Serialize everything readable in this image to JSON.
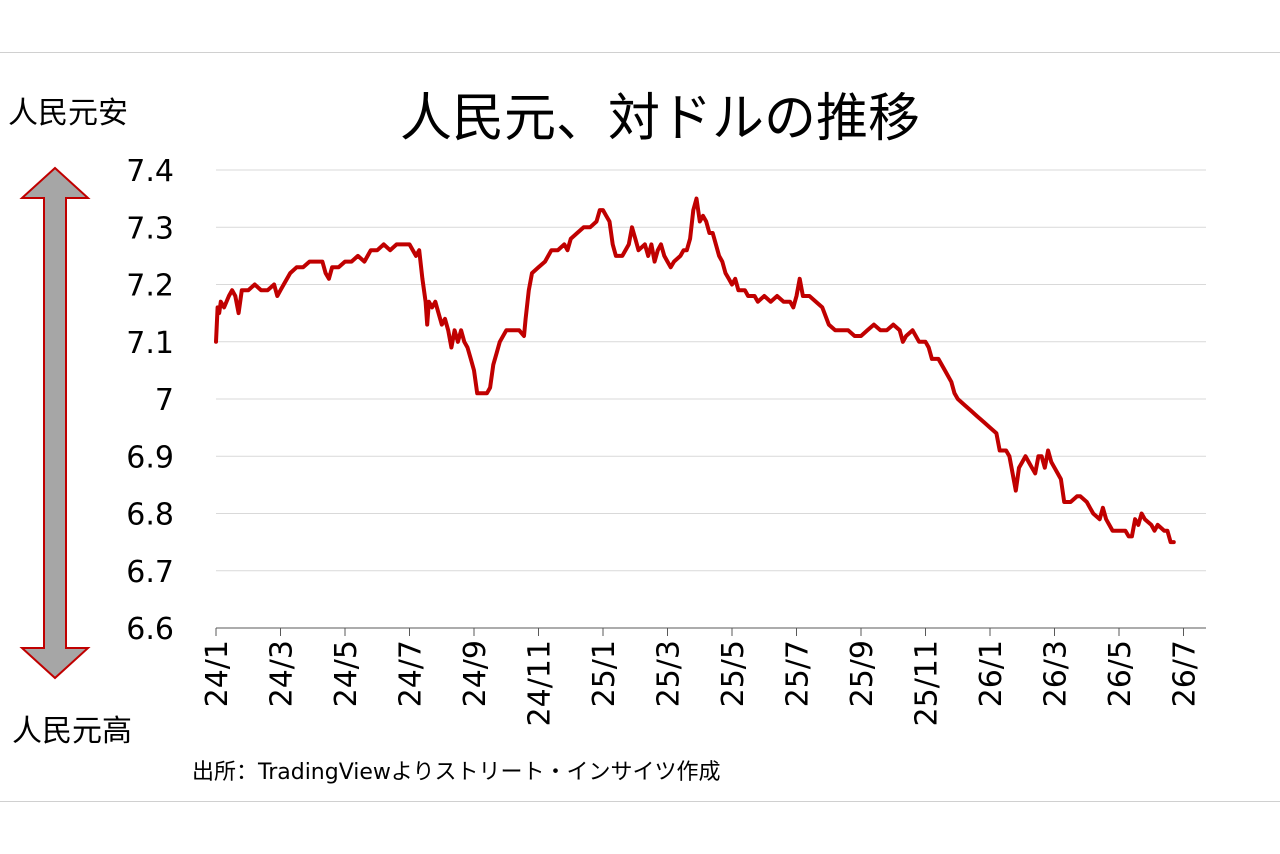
{
  "title": "人民元、対ドルの推移",
  "side_labels": {
    "top": "人民元安",
    "bottom": "人民元高"
  },
  "source": "出所：TradingViewよりストリート・インサイツ作成",
  "colors": {
    "line": "#c00000",
    "arrow_fill": "#a6a6a6",
    "arrow_stroke": "#c00000",
    "grid": "#d9d9d9",
    "axis": "#595959"
  },
  "chart_data": {
    "type": "line",
    "title": "人民元、対ドルの推移",
    "xlabel": "",
    "ylabel": "",
    "ylim": [
      6.6,
      7.4
    ],
    "yticks": [
      "7.4",
      "7.3",
      "7.2",
      "7.1",
      "7",
      "6.9",
      "6.8",
      "6.7",
      "6.6"
    ],
    "x_categories": [
      "24/1",
      "24/3",
      "24/5",
      "24/7",
      "24/9",
      "24/11",
      "25/1",
      "25/3",
      "25/5",
      "25/7",
      "25/9",
      "25/11",
      "26/1",
      "26/3",
      "26/5",
      "26/7"
    ],
    "x_range_months": [
      0,
      19
    ],
    "grid": true,
    "series": [
      {
        "name": "",
        "points": [
          [
            0.0,
            7.1
          ],
          [
            0.05,
            7.16
          ],
          [
            0.1,
            7.15
          ],
          [
            0.15,
            7.17
          ],
          [
            0.25,
            7.16
          ],
          [
            0.4,
            7.18
          ],
          [
            0.5,
            7.19
          ],
          [
            0.6,
            7.18
          ],
          [
            0.7,
            7.15
          ],
          [
            0.8,
            7.19
          ],
          [
            1.0,
            7.19
          ],
          [
            1.2,
            7.2
          ],
          [
            1.4,
            7.19
          ],
          [
            1.6,
            7.19
          ],
          [
            1.8,
            7.2
          ],
          [
            1.9,
            7.18
          ],
          [
            2.0,
            7.19
          ],
          [
            2.1,
            7.2
          ],
          [
            2.3,
            7.22
          ],
          [
            2.5,
            7.23
          ],
          [
            2.7,
            7.23
          ],
          [
            2.9,
            7.24
          ],
          [
            3.1,
            7.24
          ],
          [
            3.3,
            7.24
          ],
          [
            3.4,
            7.22
          ],
          [
            3.5,
            7.21
          ],
          [
            3.6,
            7.23
          ],
          [
            3.8,
            7.23
          ],
          [
            4.0,
            7.24
          ],
          [
            4.2,
            7.24
          ],
          [
            4.4,
            7.25
          ],
          [
            4.6,
            7.24
          ],
          [
            4.8,
            7.26
          ],
          [
            5.0,
            7.26
          ],
          [
            5.2,
            7.27
          ],
          [
            5.4,
            7.26
          ],
          [
            5.6,
            7.27
          ],
          [
            5.8,
            7.27
          ],
          [
            6.0,
            7.27
          ],
          [
            6.2,
            7.25
          ],
          [
            6.3,
            7.26
          ],
          [
            6.4,
            7.21
          ],
          [
            6.5,
            7.17
          ],
          [
            6.55,
            7.13
          ],
          [
            6.6,
            7.17
          ],
          [
            6.7,
            7.16
          ],
          [
            6.8,
            7.17
          ],
          [
            6.9,
            7.15
          ],
          [
            7.0,
            7.13
          ],
          [
            7.1,
            7.14
          ],
          [
            7.2,
            7.12
          ],
          [
            7.3,
            7.09
          ],
          [
            7.4,
            7.12
          ],
          [
            7.5,
            7.1
          ],
          [
            7.6,
            7.12
          ],
          [
            7.7,
            7.1
          ],
          [
            7.8,
            7.09
          ],
          [
            7.9,
            7.07
          ],
          [
            8.0,
            7.05
          ],
          [
            8.05,
            7.03
          ],
          [
            8.1,
            7.01
          ],
          [
            8.2,
            7.01
          ],
          [
            8.4,
            7.01
          ],
          [
            8.5,
            7.02
          ],
          [
            8.6,
            7.06
          ],
          [
            8.7,
            7.08
          ],
          [
            8.8,
            7.1
          ],
          [
            9.0,
            7.12
          ],
          [
            9.2,
            7.12
          ],
          [
            9.4,
            7.12
          ],
          [
            9.55,
            7.11
          ],
          [
            9.6,
            7.14
          ],
          [
            9.7,
            7.19
          ],
          [
            9.8,
            7.22
          ],
          [
            10.0,
            7.23
          ],
          [
            10.2,
            7.24
          ],
          [
            10.4,
            7.26
          ],
          [
            10.6,
            7.26
          ],
          [
            10.8,
            7.27
          ],
          [
            10.9,
            7.26
          ],
          [
            11.0,
            7.28
          ],
          [
            11.2,
            7.29
          ],
          [
            11.4,
            7.3
          ],
          [
            11.6,
            7.3
          ],
          [
            11.8,
            7.31
          ],
          [
            11.9,
            7.33
          ],
          [
            12.0,
            7.33
          ],
          [
            12.1,
            7.32
          ],
          [
            12.2,
            7.31
          ],
          [
            12.3,
            7.27
          ],
          [
            12.4,
            7.25
          ],
          [
            12.6,
            7.25
          ],
          [
            12.8,
            7.27
          ],
          [
            12.9,
            7.3
          ],
          [
            13.0,
            7.28
          ],
          [
            13.1,
            7.26
          ],
          [
            13.3,
            7.27
          ],
          [
            13.4,
            7.25
          ],
          [
            13.5,
            7.27
          ],
          [
            13.6,
            7.24
          ],
          [
            13.7,
            7.26
          ],
          [
            13.8,
            7.27
          ],
          [
            13.9,
            7.25
          ],
          [
            14.0,
            7.24
          ],
          [
            14.1,
            7.23
          ],
          [
            14.2,
            7.24
          ],
          [
            14.4,
            7.25
          ],
          [
            14.5,
            7.26
          ],
          [
            14.6,
            7.26
          ],
          [
            14.7,
            7.28
          ],
          [
            14.8,
            7.33
          ],
          [
            14.9,
            7.35
          ],
          [
            15.0,
            7.31
          ],
          [
            15.1,
            7.32
          ],
          [
            15.2,
            7.31
          ],
          [
            15.3,
            7.29
          ],
          [
            15.4,
            7.29
          ],
          [
            15.5,
            7.27
          ],
          [
            15.6,
            7.25
          ],
          [
            15.7,
            7.24
          ],
          [
            15.8,
            7.22
          ],
          [
            15.9,
            7.21
          ],
          [
            16.0,
            7.2
          ],
          [
            16.1,
            7.21
          ],
          [
            16.2,
            7.19
          ],
          [
            16.4,
            7.19
          ],
          [
            16.5,
            7.18
          ],
          [
            16.7,
            7.18
          ],
          [
            16.8,
            7.17
          ],
          [
            17.0,
            7.18
          ],
          [
            17.2,
            7.17
          ],
          [
            17.4,
            7.18
          ],
          [
            17.6,
            7.17
          ],
          [
            17.8,
            7.17
          ],
          [
            17.9,
            7.16
          ],
          [
            18.0,
            7.18
          ],
          [
            18.1,
            7.21
          ],
          [
            18.2,
            7.18
          ],
          [
            18.4,
            7.18
          ],
          [
            18.6,
            7.17
          ],
          [
            18.8,
            7.16
          ],
          [
            19.0,
            7.13
          ],
          [
            19.2,
            7.12
          ],
          [
            19.4,
            7.12
          ],
          [
            19.6,
            7.12
          ],
          [
            19.8,
            7.11
          ],
          [
            20.0,
            7.11
          ],
          [
            20.2,
            7.12
          ],
          [
            20.4,
            7.13
          ],
          [
            20.6,
            7.12
          ],
          [
            20.8,
            7.12
          ],
          [
            21.0,
            7.13
          ],
          [
            21.2,
            7.12
          ],
          [
            21.3,
            7.1
          ],
          [
            21.4,
            7.11
          ],
          [
            21.6,
            7.12
          ],
          [
            21.8,
            7.1
          ],
          [
            22.0,
            7.1
          ],
          [
            22.1,
            7.09
          ],
          [
            22.2,
            7.07
          ],
          [
            22.4,
            7.07
          ],
          [
            22.6,
            7.05
          ],
          [
            22.8,
            7.03
          ],
          [
            22.9,
            7.01
          ],
          [
            23.0,
            7.0
          ],
          [
            23.2,
            6.99
          ],
          [
            23.4,
            6.98
          ],
          [
            23.6,
            6.97
          ],
          [
            23.8,
            6.96
          ],
          [
            24.0,
            6.95
          ],
          [
            24.2,
            6.94
          ],
          [
            24.3,
            6.91
          ],
          [
            24.5,
            6.91
          ],
          [
            24.6,
            6.9
          ],
          [
            24.7,
            6.87
          ],
          [
            24.8,
            6.84
          ],
          [
            24.9,
            6.88
          ],
          [
            25.0,
            6.89
          ],
          [
            25.1,
            6.9
          ],
          [
            25.2,
            6.89
          ],
          [
            25.3,
            6.88
          ],
          [
            25.4,
            6.87
          ],
          [
            25.5,
            6.9
          ],
          [
            25.6,
            6.9
          ],
          [
            25.7,
            6.88
          ],
          [
            25.8,
            6.91
          ],
          [
            25.9,
            6.89
          ],
          [
            26.0,
            6.88
          ],
          [
            26.1,
            6.87
          ],
          [
            26.2,
            6.86
          ],
          [
            26.3,
            6.82
          ],
          [
            26.5,
            6.82
          ],
          [
            26.7,
            6.83
          ],
          [
            26.8,
            6.83
          ],
          [
            27.0,
            6.82
          ],
          [
            27.1,
            6.81
          ],
          [
            27.2,
            6.8
          ],
          [
            27.4,
            6.79
          ],
          [
            27.5,
            6.81
          ],
          [
            27.6,
            6.79
          ],
          [
            27.7,
            6.78
          ],
          [
            27.8,
            6.77
          ],
          [
            28.0,
            6.77
          ],
          [
            28.2,
            6.77
          ],
          [
            28.3,
            6.76
          ],
          [
            28.4,
            6.76
          ],
          [
            28.5,
            6.79
          ],
          [
            28.6,
            6.78
          ],
          [
            28.7,
            6.8
          ],
          [
            28.8,
            6.79
          ],
          [
            29.0,
            6.78
          ],
          [
            29.1,
            6.77
          ],
          [
            29.2,
            6.78
          ],
          [
            29.4,
            6.77
          ],
          [
            29.5,
            6.77
          ],
          [
            29.6,
            6.75
          ],
          [
            29.7,
            6.75
          ]
        ]
      }
    ],
    "x_months_per_tick": 2
  }
}
